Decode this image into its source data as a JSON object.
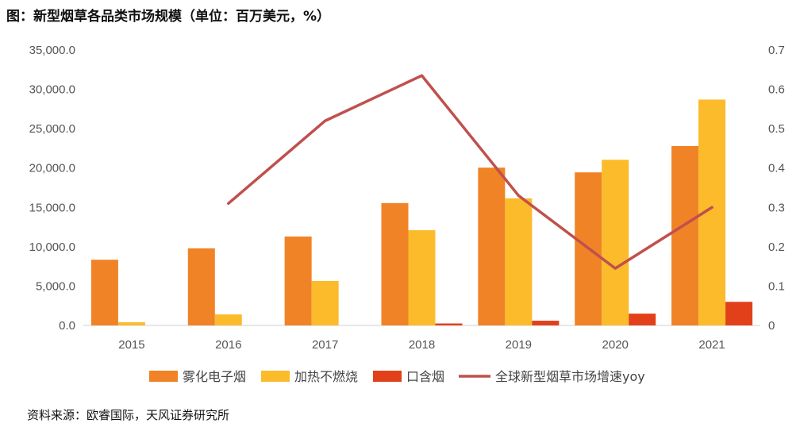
{
  "figure_title": "图：新型烟草各品类市场规模（单位：百万美元，%）",
  "source": "资料来源：欧睿国际，天风证券研究所",
  "chart_data": {
    "type": "bar",
    "categories": [
      "2015",
      "2016",
      "2017",
      "2018",
      "2019",
      "2020",
      "2021"
    ],
    "series": [
      {
        "name": "雾化电子烟",
        "type": "bar",
        "axis": "left",
        "color": "#f08326",
        "values": [
          8350,
          9800,
          11300,
          15550,
          20050,
          19450,
          22800
        ]
      },
      {
        "name": "加热不燃烧",
        "type": "bar",
        "axis": "left",
        "color": "#fbbb2b",
        "values": [
          400,
          1400,
          5650,
          12100,
          16150,
          21050,
          28700
        ]
      },
      {
        "name": "口含烟",
        "type": "bar",
        "axis": "left",
        "color": "#e2401a",
        "values": [
          0,
          0,
          0,
          250,
          600,
          1500,
          3000
        ]
      },
      {
        "name": "全球新型烟草市场增速yoy",
        "type": "line",
        "axis": "right",
        "color": "#c0504d",
        "values": [
          null,
          0.31,
          0.52,
          0.635,
          0.33,
          0.145,
          0.3
        ]
      }
    ],
    "y_left": {
      "min": 0,
      "max": 35000,
      "ticks": [
        0,
        5000,
        10000,
        15000,
        20000,
        25000,
        30000,
        35000
      ],
      "tick_labels": [
        "0.0",
        "5,000.0",
        "10,000.0",
        "15,000.0",
        "20,000.0",
        "25,000.0",
        "30,000.0",
        "35,000.0"
      ]
    },
    "y_right": {
      "min": 0,
      "max": 0.7,
      "ticks": [
        0,
        0.1,
        0.2,
        0.3,
        0.4,
        0.5,
        0.6,
        0.7
      ],
      "tick_labels": [
        "0",
        "0.1",
        "0.2",
        "0.3",
        "0.4",
        "0.5",
        "0.6",
        "0.7"
      ]
    },
    "legend_position": "bottom",
    "grid": false
  }
}
